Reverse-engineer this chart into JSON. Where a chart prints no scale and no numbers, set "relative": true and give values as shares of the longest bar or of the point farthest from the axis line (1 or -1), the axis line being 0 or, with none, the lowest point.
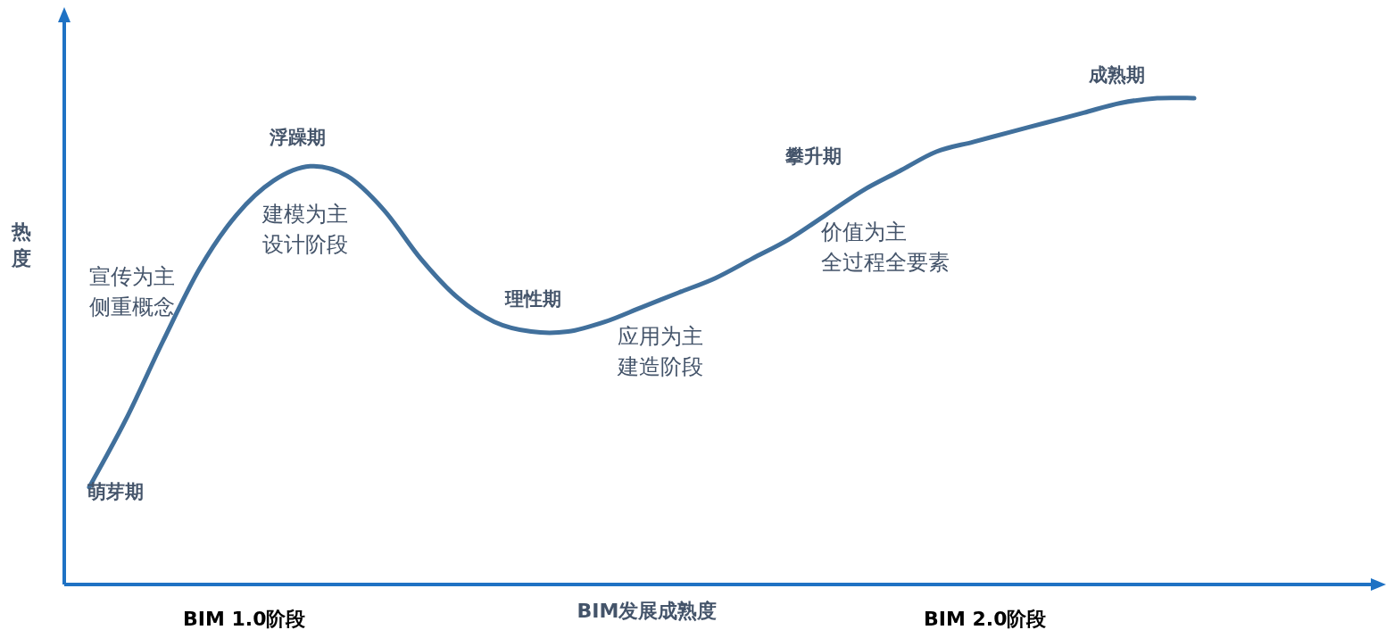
{
  "chart_data": {
    "type": "line",
    "relative": true,
    "xlabel": "BIM发展成熟度",
    "ylabel": "热度",
    "categories": [
      null,
      null,
      null,
      null,
      null,
      null,
      null,
      null,
      null,
      null,
      null,
      null,
      null,
      null,
      null,
      null,
      null,
      null,
      null,
      null,
      null,
      null,
      null,
      null,
      null,
      null,
      null,
      null,
      null,
      null,
      null
    ],
    "series": [
      {
        "color": "#41709c",
        "values": [
          0.2,
          0.34,
          0.5,
          0.65,
          0.76,
          0.83,
          0.86,
          0.84,
          0.77,
          0.67,
          0.59,
          0.54,
          0.52,
          0.52,
          0.54,
          0.57,
          0.6,
          0.63,
          0.67,
          0.71,
          0.76,
          0.81,
          0.85,
          0.89,
          0.91,
          0.93,
          0.95,
          0.97,
          0.99,
          1.0,
          1.0
        ]
      }
    ],
    "annotations": [
      "萌芽期",
      "浮躁期",
      "理性期",
      "攀升期",
      "成熟期",
      "宣传为主",
      "侧重概念",
      "建模为主",
      "设计阶段",
      "应用为主",
      "建造阶段",
      "价值为主",
      "全过程全要素",
      "BIM 1.0阶段",
      "BIM 2.0阶段"
    ]
  }
}
